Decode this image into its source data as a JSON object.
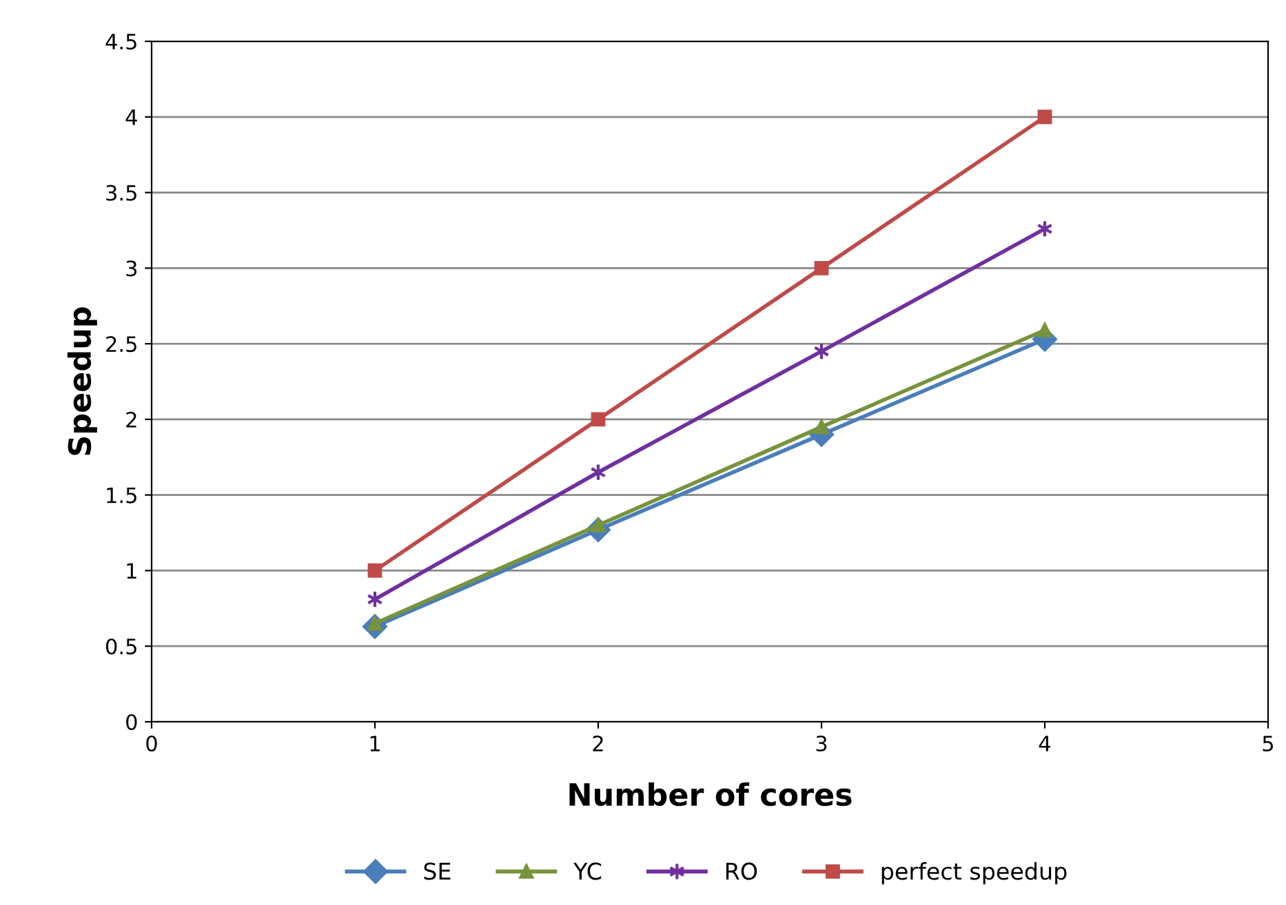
{
  "chart_data": {
    "type": "line",
    "xlabel": "Number of cores",
    "ylabel": "Speedup",
    "x": [
      1,
      2,
      3,
      4
    ],
    "series": [
      {
        "name": "SE",
        "color": "#4a7ebb",
        "marker": "diamond",
        "values": [
          0.63,
          1.27,
          1.9,
          2.53
        ]
      },
      {
        "name": "YC",
        "color": "#77933c",
        "marker": "triangle",
        "values": [
          0.65,
          1.3,
          1.95,
          2.59
        ]
      },
      {
        "name": "RO",
        "color": "#7030a0",
        "marker": "cross",
        "values": [
          0.81,
          1.65,
          2.45,
          3.26
        ]
      },
      {
        "name": "perfect speedup",
        "color": "#be4b48",
        "marker": "square",
        "values": [
          1,
          2,
          3,
          4
        ]
      }
    ],
    "xlim": [
      0,
      5
    ],
    "xticks": [
      0,
      1,
      2,
      3,
      4,
      5
    ],
    "ylim": [
      0,
      4.5
    ],
    "yticks": [
      0,
      0.5,
      1,
      1.5,
      2,
      2.5,
      3,
      3.5,
      4,
      4.5
    ],
    "grid": "y",
    "legend": "bottom",
    "line_style": "solid"
  }
}
